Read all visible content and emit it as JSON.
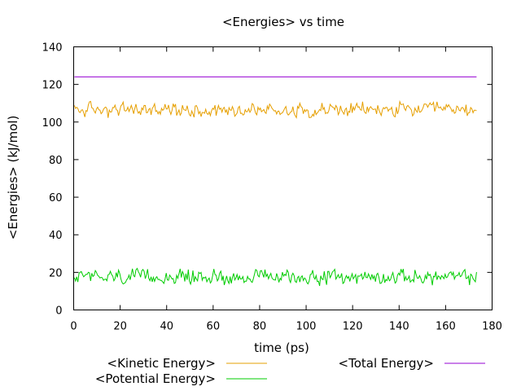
{
  "chart_data": {
    "type": "line",
    "title": "<Energies> vs time",
    "xlabel": "time (ps)",
    "ylabel": "<Energies> (kJ/mol)",
    "xlim": [
      0,
      180
    ],
    "ylim": [
      0,
      140
    ],
    "xticks": [
      0,
      20,
      40,
      60,
      80,
      100,
      120,
      140,
      160,
      180
    ],
    "yticks": [
      0,
      20,
      40,
      60,
      80,
      100,
      120,
      140
    ],
    "grid": false,
    "legend_position": "bottom",
    "x_range": [
      0.3,
      173.5
    ],
    "sample_step": 0.5,
    "series": [
      {
        "name": "<Kinetic Energy>",
        "color": "#e69f00",
        "mean": 106.5,
        "fluctuation_range": [
          100.5,
          112
        ]
      },
      {
        "name": "<Potential Energy>",
        "color": "#00cc00",
        "mean": 17.5,
        "fluctuation_range": [
          12,
          23.5
        ]
      },
      {
        "name": "<Total Energy>",
        "color": "#9400d3",
        "mean": 124,
        "fluctuation_range": [
          124,
          124
        ]
      }
    ]
  }
}
